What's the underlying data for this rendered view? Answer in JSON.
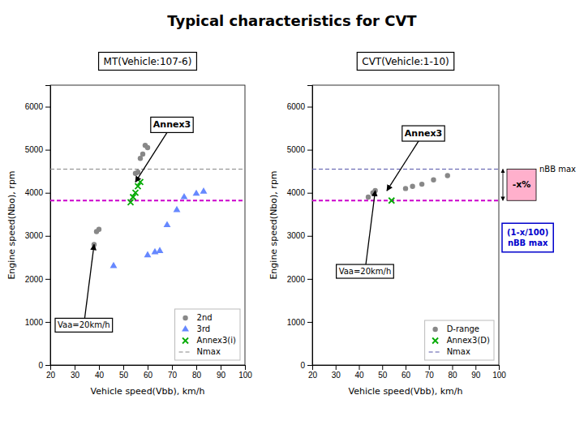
{
  "title": "Typical characteristics for CVT",
  "chart_data": [
    {
      "type": "scatter",
      "title": "MT(Vehicle:107-6)",
      "xlabel": "Vehicle speed(Vbb), km/h",
      "ylabel": "Engine speed(Nbo), rpm",
      "xlim": [
        20,
        100
      ],
      "ylim": [
        0,
        6500
      ],
      "xticks": [
        20,
        30,
        40,
        50,
        60,
        70,
        80,
        90,
        100
      ],
      "yticks": [
        0,
        1000,
        2000,
        3000,
        4000,
        5000,
        6000
      ],
      "grid": false,
      "legend": "lower right",
      "series": [
        {
          "name": "2nd",
          "type": "scatter",
          "marker": "circle",
          "color": "#888888",
          "x": [
            38,
            39,
            40,
            55,
            56,
            57,
            58,
            59,
            60
          ],
          "values": [
            2800,
            3100,
            3150,
            4450,
            4480,
            4800,
            4900,
            5100,
            5050
          ]
        },
        {
          "name": "3rd",
          "type": "scatter",
          "marker": "triangle",
          "color": "#6688ff",
          "x": [
            46,
            60,
            63,
            65,
            68,
            72,
            75,
            80,
            83
          ],
          "values": [
            2300,
            2550,
            2620,
            2650,
            3250,
            3600,
            3900,
            3980,
            4030
          ]
        },
        {
          "name": "Annex3(i)",
          "type": "scatter",
          "marker": "x",
          "color": "#00aa00",
          "x": [
            53,
            54,
            55,
            56,
            57
          ],
          "values": [
            3780,
            3900,
            4000,
            4150,
            4250
          ]
        },
        {
          "name": "Nmax",
          "type": "hline",
          "line_style": "dashed",
          "color": "#888888",
          "values": [
            4550
          ]
        },
        {
          "type": "hline",
          "line_style": "dashed",
          "color": "#cc00cc",
          "values": [
            3820
          ]
        }
      ],
      "annotations": [
        {
          "type": "arrow",
          "text": "Annex3",
          "x": 55,
          "y": 4250
        },
        {
          "type": "arrow",
          "text": "Vaa=20km/h",
          "x": 38,
          "y": 2800
        }
      ]
    },
    {
      "type": "scatter",
      "title": "CVT(Vehicle:1-10)",
      "xlabel": "Vehicle speed(Vbb), km/h",
      "ylabel": "Engine speed(Nbo), rpm",
      "xlim": [
        20,
        100
      ],
      "ylim": [
        0,
        6500
      ],
      "xticks": [
        20,
        30,
        40,
        50,
        60,
        70,
        80,
        90,
        100
      ],
      "yticks": [
        0,
        1000,
        2000,
        3000,
        4000,
        5000,
        6000
      ],
      "grid": false,
      "legend": "lower right",
      "series": [
        {
          "name": "D-range",
          "type": "scatter",
          "marker": "circle",
          "color": "#888888",
          "x": [
            44,
            46,
            47,
            60,
            63,
            67,
            72,
            78
          ],
          "values": [
            3900,
            4000,
            4050,
            4100,
            4150,
            4200,
            4300,
            4400
          ]
        },
        {
          "name": "Annex3(D)",
          "type": "scatter",
          "marker": "x",
          "color": "#00aa00",
          "x": [
            54
          ],
          "values": [
            3820
          ]
        },
        {
          "name": "Nmax",
          "type": "hline",
          "line_style": "dashed",
          "color": "#5555aa",
          "values": [
            4550
          ]
        },
        {
          "type": "hline",
          "line_style": "dashed",
          "color": "#cc00cc",
          "values": [
            3820
          ]
        }
      ],
      "annotations": [
        {
          "type": "arrow",
          "text": "Annex3",
          "x": 52,
          "y": 4050
        },
        {
          "type": "arrow",
          "text": "Vaa=20km/h",
          "x": 47,
          "y": 4050
        },
        {
          "type": "line_label",
          "text": "nBB max"
        },
        {
          "type": "span",
          "text": "-x%",
          "color": "#ffb0cc"
        },
        {
          "type": "box",
          "text": "(1-x/100)\nnBB max",
          "color": "#0000cc"
        }
      ]
    }
  ]
}
